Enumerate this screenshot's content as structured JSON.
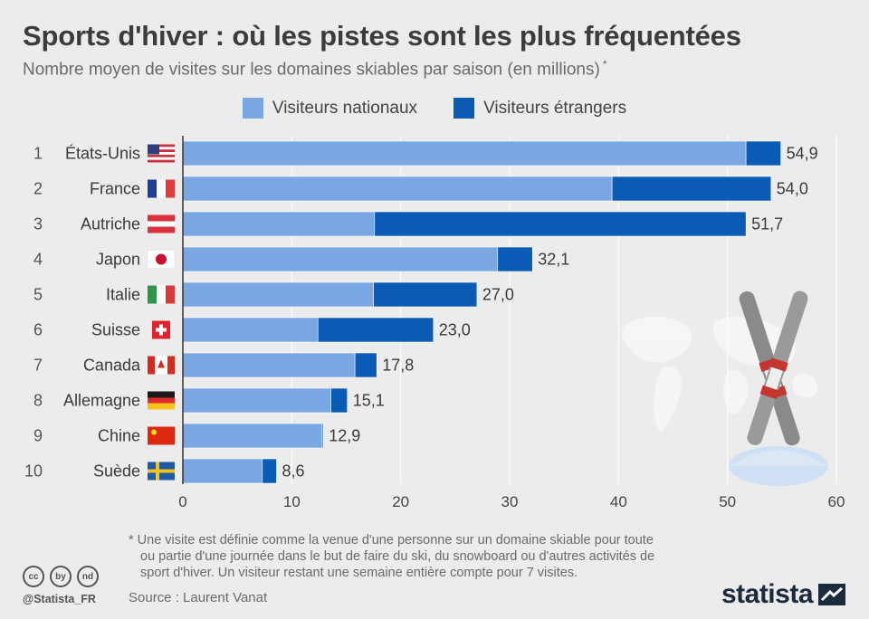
{
  "header": {
    "title": "Sports d'hiver : où les pistes sont les plus fréquentées",
    "subtitle": "Nombre moyen de visites sur les domaines skiables par saison (en millions)",
    "subtitle_mark": "*"
  },
  "colors": {
    "national": "#7aa6e3",
    "foreign": "#0a5bb5",
    "background": "#ececec",
    "grid": "#ffffff"
  },
  "chart_data": {
    "type": "bar",
    "orientation": "horizontal",
    "stacked": true,
    "ranks": [
      "1",
      "2",
      "3",
      "4",
      "5",
      "6",
      "7",
      "8",
      "9",
      "10"
    ],
    "categories": [
      "États-Unis",
      "France",
      "Autriche",
      "Japon",
      "Italie",
      "Suisse",
      "Canada",
      "Allemagne",
      "Chine",
      "Suède"
    ],
    "flags": [
      "flag-us",
      "flag-fr",
      "flag-at",
      "flag-jp",
      "flag-it",
      "flag-ch",
      "flag-ca",
      "flag-de",
      "flag-cn",
      "flag-se"
    ],
    "series": [
      {
        "name": "Visiteurs nationaux",
        "values": [
          51.7,
          39.4,
          17.6,
          28.9,
          17.5,
          12.4,
          15.8,
          13.6,
          12.8,
          7.3
        ]
      },
      {
        "name": "Visiteurs étrangers",
        "values": [
          3.2,
          14.6,
          34.1,
          3.2,
          9.5,
          10.6,
          2.0,
          1.5,
          0.1,
          1.3
        ]
      }
    ],
    "totals": [
      "54,9",
      "54,0",
      "51,7",
      "32,1",
      "27,0",
      "23,0",
      "17,8",
      "15,1",
      "12,9",
      "8,6"
    ],
    "xlim": [
      0,
      60
    ],
    "xticks": [
      0,
      10,
      20,
      30,
      40,
      50,
      60
    ],
    "grid": true,
    "legend_position": "top-center"
  },
  "footnote": {
    "line1": "* Une visite est définie comme la venue d'une personne sur un domaine skiable pour toute",
    "line2": "ou partie d'une journée dans le but de faire du ski, du snowboard ou d'autres activités de",
    "line3": "sport d'hiver. Un visiteur restant une semaine entière compte pour 7 visites."
  },
  "source": "Source : Laurent Vanat",
  "handle": "@Statista_FR",
  "brand": "statista",
  "license_icons": [
    "cc",
    "by",
    "nd"
  ]
}
